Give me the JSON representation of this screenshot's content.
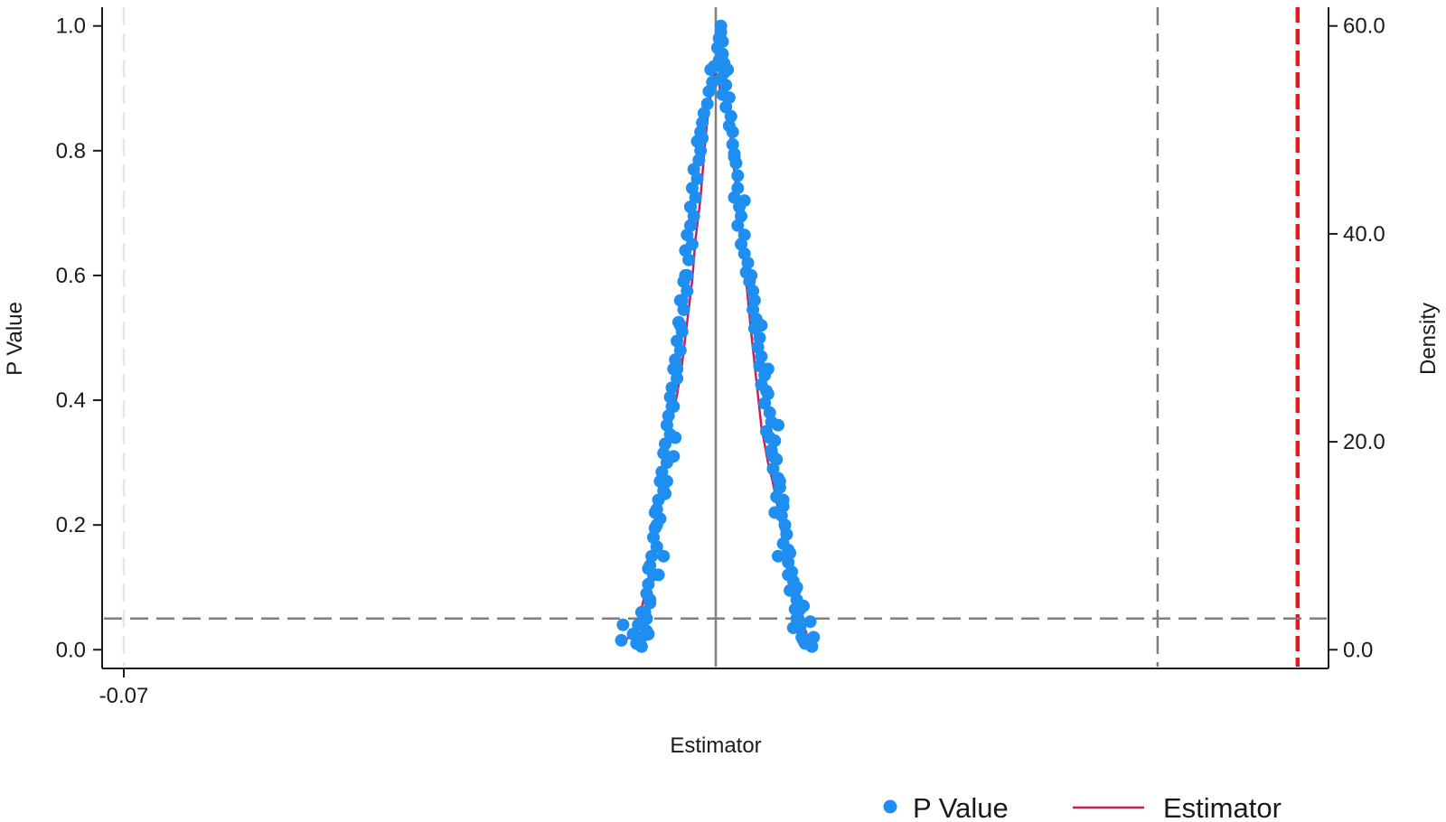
{
  "chart_data": {
    "type": "scatter",
    "title": "",
    "xlabel": "Estimator",
    "ylabel": "P Value",
    "y2label": "Density",
    "xlim": [
      -0.07,
      0.0
    ],
    "ylim": [
      -0.03,
      1.03
    ],
    "y2lim": [
      -1.8,
      61.8
    ],
    "x_ticks": [
      {
        "value": -0.07,
        "label": "-0.07"
      }
    ],
    "y_ticks": [
      {
        "value": 0.0,
        "label": "0.0"
      },
      {
        "value": 0.2,
        "label": "0.2"
      },
      {
        "value": 0.4,
        "label": "0.4"
      },
      {
        "value": 0.6,
        "label": "0.6"
      },
      {
        "value": 0.8,
        "label": "0.8"
      },
      {
        "value": 1.0,
        "label": "1.0"
      }
    ],
    "y2_ticks": [
      {
        "value": 0,
        "label": "0.0"
      },
      {
        "value": 20,
        "label": "20.0"
      },
      {
        "value": 40,
        "label": "40.0"
      },
      {
        "value": 60,
        "label": "60.0"
      }
    ],
    "grid": false,
    "legend_position": "bottom-right",
    "reference_lines": [
      {
        "orientation": "vertical",
        "x": -0.07,
        "style": "dashed",
        "color": "#e6e6e6"
      },
      {
        "orientation": "vertical",
        "x": -0.0349,
        "style": "solid",
        "color": "#7f7f7f"
      },
      {
        "orientation": "vertical",
        "x": -0.0087,
        "style": "dashed",
        "color": "#7f7f7f"
      },
      {
        "orientation": "vertical",
        "x": -0.0004,
        "style": "dashed",
        "color": "#e8151b"
      },
      {
        "orientation": "horizontal",
        "y": 0.05,
        "style": "dashed",
        "color": "#7f7f7f"
      }
    ],
    "series": [
      {
        "name": "P Value",
        "kind": "scatter",
        "axis": "left",
        "color": "#1f8ef1",
        "points": [
          [
            -0.0346,
            1.0
          ],
          [
            -0.0346,
            0.99
          ],
          [
            -0.0347,
            0.98
          ],
          [
            -0.0345,
            0.975
          ],
          [
            -0.0348,
            0.965
          ],
          [
            -0.0345,
            0.955
          ],
          [
            -0.0347,
            0.945
          ],
          [
            -0.0344,
            0.94
          ],
          [
            -0.035,
            0.935
          ],
          [
            -0.0344,
            0.925
          ],
          [
            -0.0346,
            0.915
          ],
          [
            -0.0351,
            0.91
          ],
          [
            -0.0343,
            0.905
          ],
          [
            -0.0353,
            0.895
          ],
          [
            -0.0345,
            0.89
          ],
          [
            -0.0341,
            0.885
          ],
          [
            -0.0354,
            0.875
          ],
          [
            -0.0343,
            0.87
          ],
          [
            -0.0356,
            0.86
          ],
          [
            -0.034,
            0.855
          ],
          [
            -0.0341,
            0.84
          ],
          [
            -0.0357,
            0.845
          ],
          [
            -0.0339,
            0.83
          ],
          [
            -0.0358,
            0.83
          ],
          [
            -0.0339,
            0.81
          ],
          [
            -0.036,
            0.815
          ],
          [
            -0.0338,
            0.795
          ],
          [
            -0.0358,
            0.8
          ],
          [
            -0.0337,
            0.78
          ],
          [
            -0.0359,
            0.785
          ],
          [
            -0.0336,
            0.76
          ],
          [
            -0.0362,
            0.77
          ],
          [
            -0.0336,
            0.74
          ],
          [
            -0.036,
            0.755
          ],
          [
            -0.0338,
            0.725
          ],
          [
            -0.0363,
            0.74
          ],
          [
            -0.0335,
            0.71
          ],
          [
            -0.0361,
            0.725
          ],
          [
            -0.0334,
            0.695
          ],
          [
            -0.0364,
            0.71
          ],
          [
            -0.0336,
            0.68
          ],
          [
            -0.0362,
            0.695
          ],
          [
            -0.0332,
            0.665
          ],
          [
            -0.0364,
            0.68
          ],
          [
            -0.0334,
            0.65
          ],
          [
            -0.0366,
            0.665
          ],
          [
            -0.0332,
            0.635
          ],
          [
            -0.0363,
            0.65
          ],
          [
            -0.033,
            0.62
          ],
          [
            -0.0367,
            0.64
          ],
          [
            -0.0331,
            0.605
          ],
          [
            -0.0365,
            0.625
          ],
          [
            -0.0329,
            0.59
          ],
          [
            -0.0366,
            0.6
          ],
          [
            -0.0327,
            0.575
          ],
          [
            -0.0368,
            0.59
          ],
          [
            -0.0326,
            0.56
          ],
          [
            -0.0366,
            0.575
          ],
          [
            -0.0327,
            0.545
          ],
          [
            -0.037,
            0.56
          ],
          [
            -0.0325,
            0.53
          ],
          [
            -0.0368,
            0.545
          ],
          [
            -0.0326,
            0.515
          ],
          [
            -0.0371,
            0.525
          ],
          [
            -0.0323,
            0.5
          ],
          [
            -0.0369,
            0.51
          ],
          [
            -0.0324,
            0.485
          ],
          [
            -0.0372,
            0.495
          ],
          [
            -0.0322,
            0.47
          ],
          [
            -0.037,
            0.48
          ],
          [
            -0.0323,
            0.455
          ],
          [
            -0.0373,
            0.465
          ],
          [
            -0.032,
            0.44
          ],
          [
            -0.0374,
            0.45
          ],
          [
            -0.0322,
            0.425
          ],
          [
            -0.0372,
            0.435
          ],
          [
            -0.0318,
            0.41
          ],
          [
            -0.0375,
            0.42
          ],
          [
            -0.032,
            0.395
          ],
          [
            -0.0376,
            0.405
          ],
          [
            -0.0317,
            0.38
          ],
          [
            -0.0374,
            0.39
          ],
          [
            -0.0316,
            0.365
          ],
          [
            -0.0377,
            0.375
          ],
          [
            -0.0319,
            0.35
          ],
          [
            -0.0378,
            0.36
          ],
          [
            -0.0314,
            0.335
          ],
          [
            -0.0376,
            0.345
          ],
          [
            -0.0316,
            0.32
          ],
          [
            -0.0379,
            0.33
          ],
          [
            -0.0313,
            0.305
          ],
          [
            -0.038,
            0.315
          ],
          [
            -0.0315,
            0.29
          ],
          [
            -0.0378,
            0.3
          ],
          [
            -0.0312,
            0.275
          ],
          [
            -0.0381,
            0.285
          ],
          [
            -0.0311,
            0.26
          ],
          [
            -0.0382,
            0.27
          ],
          [
            -0.0313,
            0.245
          ],
          [
            -0.038,
            0.255
          ],
          [
            -0.0309,
            0.23
          ],
          [
            -0.0383,
            0.24
          ],
          [
            -0.031,
            0.215
          ],
          [
            -0.0384,
            0.225
          ],
          [
            -0.0308,
            0.2
          ],
          [
            -0.0382,
            0.21
          ],
          [
            -0.0307,
            0.185
          ],
          [
            -0.0385,
            0.195
          ],
          [
            -0.0309,
            0.17
          ],
          [
            -0.0386,
            0.18
          ],
          [
            -0.0305,
            0.155
          ],
          [
            -0.0384,
            0.165
          ],
          [
            -0.0306,
            0.14
          ],
          [
            -0.0387,
            0.15
          ],
          [
            -0.0304,
            0.125
          ],
          [
            -0.0388,
            0.135
          ],
          [
            -0.0303,
            0.11
          ],
          [
            -0.0386,
            0.12
          ],
          [
            -0.0305,
            0.095
          ],
          [
            -0.0389,
            0.105
          ],
          [
            -0.0301,
            0.08
          ],
          [
            -0.039,
            0.09
          ],
          [
            -0.0302,
            0.065
          ],
          [
            -0.0388,
            0.075
          ],
          [
            -0.03,
            0.05
          ],
          [
            -0.0391,
            0.06
          ],
          [
            -0.0299,
            0.035
          ],
          [
            -0.0392,
            0.045
          ],
          [
            -0.0298,
            0.02
          ],
          [
            -0.039,
            0.03
          ],
          [
            -0.0296,
            0.01
          ],
          [
            -0.0393,
            0.02
          ],
          [
            -0.0294,
            0.015
          ],
          [
            -0.0394,
            0.015
          ],
          [
            -0.0292,
            0.005
          ],
          [
            -0.0396,
            0.01
          ],
          [
            -0.0291,
            0.02
          ],
          [
            -0.0398,
            0.025
          ],
          [
            -0.0302,
            0.095
          ],
          [
            -0.0389,
            0.13
          ],
          [
            -0.0404,
            0.04
          ],
          [
            -0.0405,
            0.015
          ],
          [
            -0.0317,
            0.34
          ],
          [
            -0.0322,
            0.52
          ],
          [
            -0.0372,
            0.45
          ],
          [
            -0.0378,
            0.27
          ],
          [
            -0.0383,
            0.12
          ],
          [
            -0.0309,
            0.24
          ],
          [
            -0.0393,
            0.06
          ],
          [
            -0.0293,
            0.045
          ],
          [
            -0.0299,
            0.065
          ],
          [
            -0.0311,
            0.27
          ],
          [
            -0.0373,
            0.34
          ],
          [
            -0.0367,
            0.6
          ],
          [
            -0.0318,
            0.45
          ],
          [
            -0.0306,
            0.16
          ],
          [
            -0.038,
            0.15
          ],
          [
            -0.039,
            0.05
          ],
          [
            -0.0301,
            0.1
          ],
          [
            -0.0315,
            0.31
          ],
          [
            -0.0369,
            0.56
          ],
          [
            -0.0328,
            0.6
          ],
          [
            -0.0375,
            0.39
          ],
          [
            -0.0385,
            0.22
          ],
          [
            -0.0312,
            0.36
          ],
          [
            -0.0303,
            0.035
          ],
          [
            -0.0395,
            0.04
          ],
          [
            -0.0306,
            0.12
          ],
          [
            -0.0388,
            0.08
          ],
          [
            -0.0384,
            0.2
          ],
          [
            -0.0319,
            0.415
          ],
          [
            -0.037,
            0.52
          ],
          [
            -0.0364,
            0.71
          ],
          [
            -0.0332,
            0.72
          ],
          [
            -0.0338,
            0.79
          ],
          [
            -0.0357,
            0.82
          ],
          [
            -0.0352,
            0.93
          ],
          [
            -0.0342,
            0.93
          ],
          [
            -0.0312,
            0.15
          ],
          [
            -0.0379,
            0.25
          ],
          [
            -0.0374,
            0.31
          ],
          [
            -0.0314,
            0.22
          ],
          [
            -0.0297,
            0.015
          ],
          [
            -0.0393,
            0.005
          ],
          [
            -0.0389,
            0.025
          ],
          [
            -0.0297,
            0.07
          ],
          [
            -0.0301,
            0.05
          ]
        ]
      },
      {
        "name": "Estimator",
        "kind": "line",
        "axis": "right",
        "color": "#c81e5b",
        "points": [
          [
            -0.0404,
            0.6
          ],
          [
            -0.0399,
            1.5
          ],
          [
            -0.0394,
            3.3
          ],
          [
            -0.039,
            6.0
          ],
          [
            -0.0385,
            10.0
          ],
          [
            -0.0382,
            14.0
          ],
          [
            -0.0379,
            18.0
          ],
          [
            -0.0376,
            21.5
          ],
          [
            -0.0372,
            24.5
          ],
          [
            -0.0369,
            27.5
          ],
          [
            -0.0366,
            31.5
          ],
          [
            -0.0363,
            35.5
          ],
          [
            -0.0361,
            39.5
          ],
          [
            -0.0358,
            43.5
          ],
          [
            -0.0356,
            47.5
          ],
          [
            -0.0354,
            51.0
          ],
          [
            -0.0352,
            53.5
          ],
          [
            -0.035,
            55.3
          ],
          [
            -0.0349,
            55.5
          ],
          [
            -0.0347,
            54.5
          ],
          [
            -0.0346,
            53.2
          ],
          [
            -0.0344,
            52.8
          ],
          [
            -0.0342,
            52.0
          ],
          [
            -0.034,
            49.0
          ],
          [
            -0.0337,
            44.5
          ],
          [
            -0.0334,
            40.0
          ],
          [
            -0.0331,
            35.5
          ],
          [
            -0.0328,
            30.5
          ],
          [
            -0.0325,
            26.0
          ],
          [
            -0.0322,
            21.5
          ],
          [
            -0.0318,
            18.0
          ],
          [
            -0.0315,
            16.0
          ],
          [
            -0.0312,
            13.5
          ],
          [
            -0.0309,
            10.5
          ],
          [
            -0.0306,
            7.5
          ],
          [
            -0.0303,
            5.5
          ],
          [
            -0.03,
            3.5
          ],
          [
            -0.0295,
            1.5
          ]
        ]
      }
    ]
  }
}
